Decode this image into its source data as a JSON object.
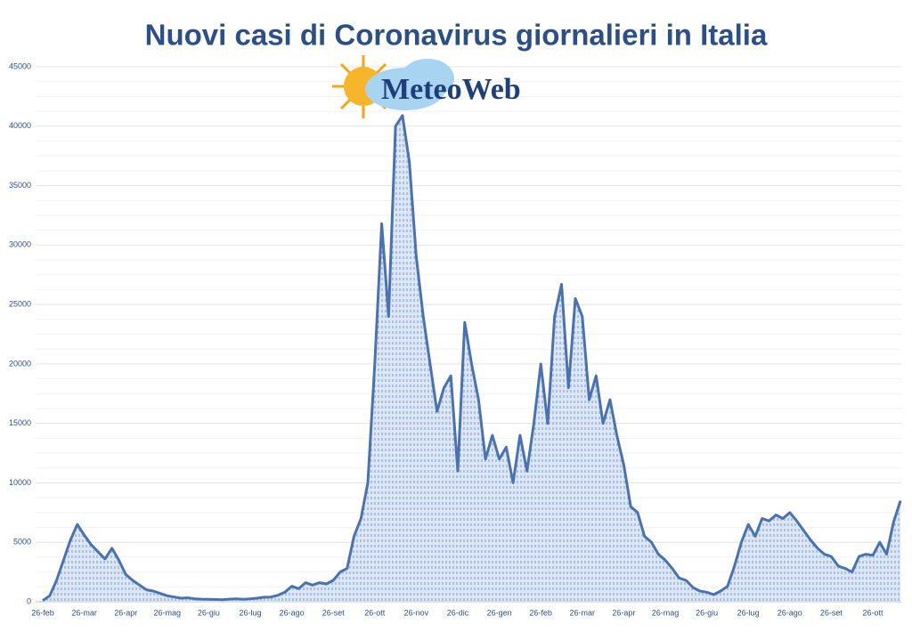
{
  "logo": "MeteoWeb",
  "chart_data": {
    "type": "area",
    "title": "Nuovi casi di Coronavirus giornalieri in Italia",
    "color": "#4a72b0",
    "fill": "#9db8e0",
    "grid": true,
    "ylim": [
      0,
      45000
    ],
    "yticks": [
      0,
      5000,
      10000,
      15000,
      20000,
      25000,
      30000,
      35000,
      40000,
      45000
    ],
    "categories": [
      "26-feb",
      null,
      null,
      null,
      null,
      null,
      "26-mar",
      null,
      null,
      null,
      null,
      null,
      "26-apr",
      null,
      null,
      null,
      null,
      null,
      "26-mag",
      null,
      null,
      null,
      null,
      null,
      "26-giu",
      null,
      null,
      null,
      null,
      null,
      "26-lug",
      null,
      null,
      null,
      null,
      null,
      "26-ago",
      null,
      null,
      null,
      null,
      null,
      "26-set",
      null,
      null,
      null,
      null,
      null,
      "26-ott",
      null,
      null,
      null,
      null,
      null,
      "26-nov",
      null,
      null,
      null,
      null,
      null,
      "26-dic",
      null,
      null,
      null,
      null,
      null,
      "26-gen",
      null,
      null,
      null,
      null,
      null,
      "26-feb",
      null,
      null,
      null,
      null,
      null,
      "26-mar",
      null,
      null,
      null,
      null,
      null,
      "26-apr",
      null,
      null,
      null,
      null,
      null,
      "26-mag",
      null,
      null,
      null,
      null,
      null,
      "26-giu",
      null,
      null,
      null,
      null,
      null,
      "26-lug",
      null,
      null,
      null,
      null,
      null,
      "26-ago",
      null,
      null,
      null,
      null,
      null,
      "26-set",
      null,
      null,
      null,
      null,
      null,
      "26-ott",
      null,
      null,
      null,
      null
    ],
    "values": [
      100,
      500,
      1800,
      3500,
      5200,
      6500,
      5600,
      4800,
      4200,
      3600,
      4500,
      3500,
      2300,
      1800,
      1400,
      1000,
      900,
      700,
      500,
      400,
      300,
      330,
      250,
      220,
      200,
      190,
      170,
      220,
      250,
      200,
      250,
      300,
      380,
      400,
      550,
      800,
      1300,
      1100,
      1600,
      1400,
      1600,
      1500,
      1800,
      2500,
      2800,
      5500,
      7000,
      10000,
      20000,
      31800,
      24000,
      40000,
      40900,
      37000,
      29000,
      24000,
      20000,
      16000,
      18000,
      19000,
      11000,
      23500,
      20000,
      17000,
      12000,
      14000,
      12000,
      13000,
      10000,
      14000,
      11000,
      15000,
      20000,
      15000,
      24000,
      26700,
      18000,
      25500,
      24000,
      17000,
      19000,
      15000,
      17000,
      14000,
      11500,
      8000,
      7500,
      5500,
      5000,
      4000,
      3500,
      2800,
      2000,
      1800,
      1200,
      900,
      800,
      600,
      900,
      1300,
      3000,
      5000,
      6500,
      5500,
      7000,
      6800,
      7300,
      7000,
      7500,
      6800,
      6000,
      5200,
      4500,
      4000,
      3800,
      3000,
      2800,
      2500,
      3800,
      4000,
      3900,
      5000,
      4000,
      6700,
      8500
    ]
  }
}
